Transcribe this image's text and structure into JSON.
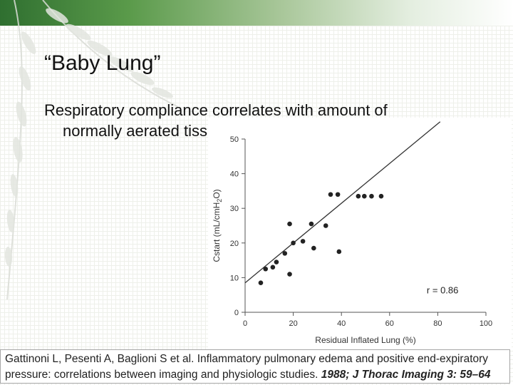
{
  "slide": {
    "title": "“Baby Lung”",
    "bullet_line1": "Respiratory compliance correlates with amount of",
    "bullet_line2": "normally aerated tissue"
  },
  "citation": {
    "authors_text": "Gattinoni L, Pesenti A, Baglioni S et al. Inflammatory pulmonary edema and positive end-expiratory",
    "line2_text": "pressure: correlations between imaging and physiologic studies. ",
    "journal": "1988; J Thorac Imaging 3: 59–64"
  },
  "colors": {
    "points": "#222222",
    "line": "#333333",
    "band_dark": "#2f6f30"
  },
  "chart_data": {
    "type": "scatter",
    "xlabel": "Residual Inflated Lung (%)",
    "ylabel": "Cstart (mL/cmH2O)",
    "ylabel_parts": {
      "main": "Cstart (mL/cmH",
      "sub": "2",
      "end": "O)"
    },
    "xlim": [
      0,
      100
    ],
    "ylim": [
      0,
      50
    ],
    "xticks": [
      0,
      20,
      40,
      60,
      80,
      100
    ],
    "yticks": [
      0,
      10,
      20,
      30,
      40,
      50
    ],
    "annotation": "r = 0.86",
    "points": [
      {
        "x": 6.5,
        "y": 8.5
      },
      {
        "x": 8.5,
        "y": 12.5
      },
      {
        "x": 11.5,
        "y": 13
      },
      {
        "x": 13,
        "y": 14.5
      },
      {
        "x": 16.5,
        "y": 17
      },
      {
        "x": 18.5,
        "y": 11
      },
      {
        "x": 18.5,
        "y": 25.5
      },
      {
        "x": 20,
        "y": 20
      },
      {
        "x": 24,
        "y": 20.5
      },
      {
        "x": 27.5,
        "y": 25.5
      },
      {
        "x": 28.5,
        "y": 18.5
      },
      {
        "x": 33.5,
        "y": 25
      },
      {
        "x": 35.5,
        "y": 34
      },
      {
        "x": 38.5,
        "y": 34
      },
      {
        "x": 39,
        "y": 17.5
      },
      {
        "x": 47,
        "y": 33.5
      },
      {
        "x": 49.5,
        "y": 33.5
      },
      {
        "x": 52.5,
        "y": 33.5
      },
      {
        "x": 56.5,
        "y": 33.5
      }
    ],
    "regression": {
      "x1": 0,
      "y1": 8.5,
      "x2": 81,
      "y2": 55
    }
  }
}
